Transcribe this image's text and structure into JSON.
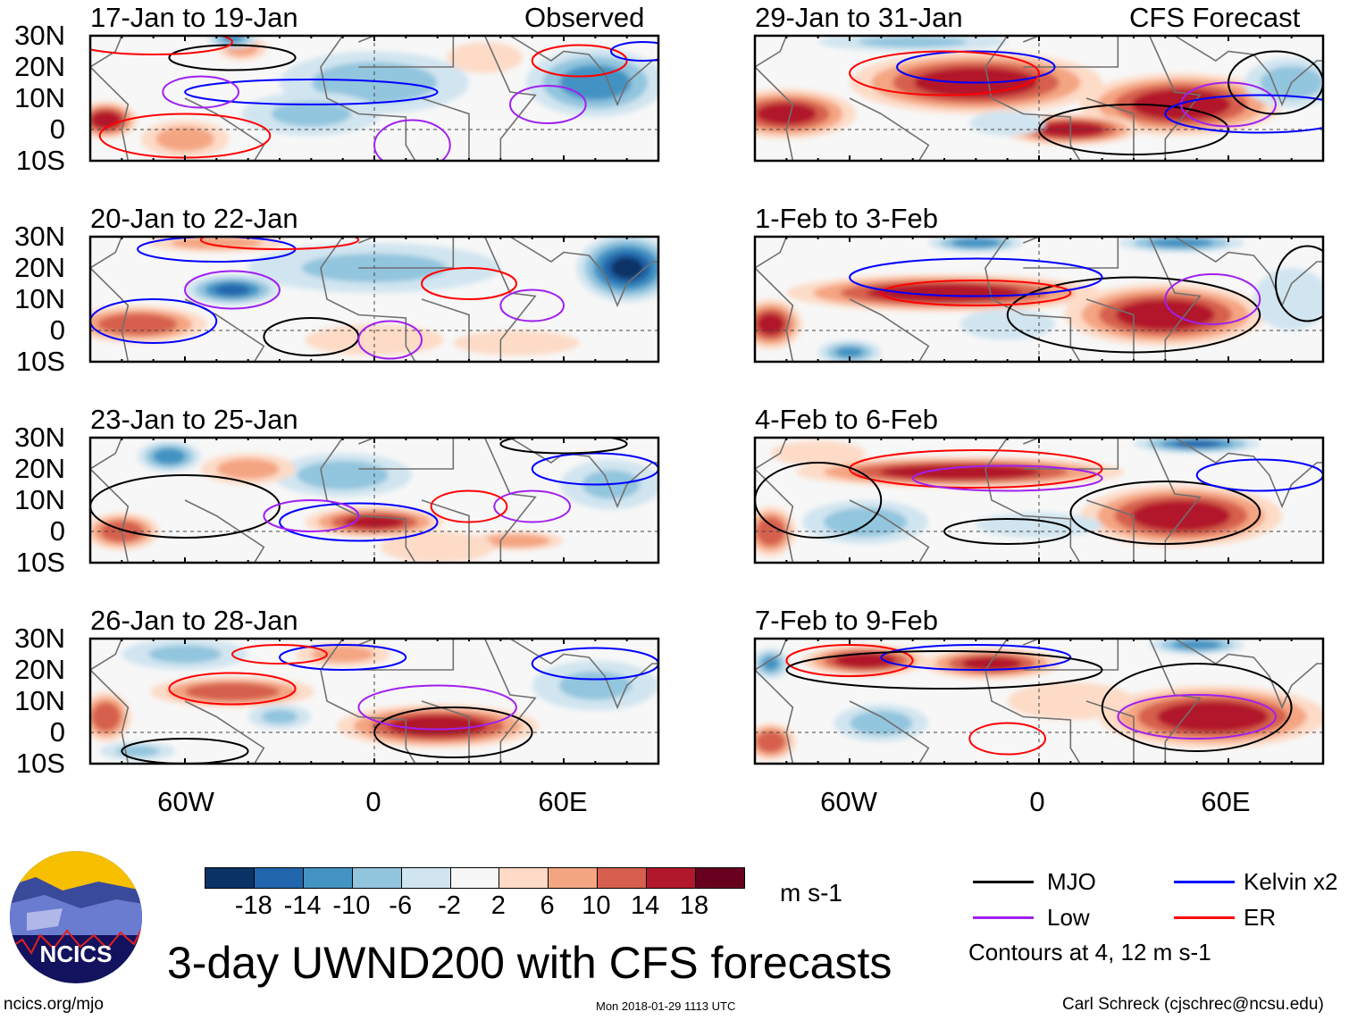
{
  "title": "3-day UWND200 with CFS forecasts",
  "footer": {
    "left": "ncics.org/mjo",
    "center": "Mon 2018-01-29 1113 UTC",
    "right": "Carl Schreck (cjschrec@ncsu.edu)"
  },
  "logo_text": "NCICS",
  "column_labels": {
    "observed": "Observed",
    "forecast": "CFS Forecast"
  },
  "lat_labels": [
    "30N",
    "20N",
    "10N",
    "0",
    "10S"
  ],
  "lon_labels": [
    "60W",
    "0",
    "60E"
  ],
  "colorbar": {
    "unit": "m s-1",
    "labels": [
      "-18",
      "-14",
      "-10",
      "-6",
      "-2",
      "2",
      "6",
      "10",
      "14",
      "18"
    ],
    "colors": [
      "#0b3265",
      "#2166ac",
      "#4393c3",
      "#92c5de",
      "#d1e5f0",
      "#f7f7f7",
      "#fddbc7",
      "#f4a582",
      "#d6604d",
      "#b2182b",
      "#67001f"
    ]
  },
  "legend": {
    "items": [
      {
        "label": "MJO",
        "color": "#000000"
      },
      {
        "label": "Kelvin x2",
        "color": "#0000ff"
      },
      {
        "label": "Low",
        "color": "#a020f0"
      },
      {
        "label": "ER",
        "color": "#ff0000"
      }
    ],
    "note": "Contours at 4, 12 m s-1"
  },
  "chart_data": {
    "type": "heatmap",
    "variable": "200-hPa zonal wind anomaly",
    "units": "m s-1",
    "lon_range": [
      -90,
      90
    ],
    "lat_range": [
      -10,
      30
    ],
    "contour_levels": [
      4,
      12
    ],
    "panels": [
      {
        "title": "17-Jan to 19-Jan",
        "anomalies": [
          [
            -85,
            3,
            10,
            6,
            18
          ],
          [
            -60,
            -3,
            14,
            6,
            8
          ],
          [
            -42,
            26,
            8,
            4,
            8
          ],
          [
            0,
            15,
            30,
            10,
            -8
          ],
          [
            70,
            15,
            22,
            11,
            -12
          ],
          [
            -20,
            5,
            22,
            7,
            -6
          ],
          [
            -45,
            29,
            8,
            3,
            -10
          ],
          [
            35,
            23,
            12,
            5,
            4
          ]
        ],
        "contours": [
          [
            "Kelvin",
            -20,
            12,
            40,
            4
          ],
          [
            "ER",
            -60,
            -2,
            27,
            7
          ],
          [
            "Low",
            -55,
            12,
            12,
            5
          ],
          [
            "Low",
            12,
            -5,
            12,
            8
          ],
          [
            "Low",
            55,
            8,
            12,
            6
          ],
          [
            "MJO",
            -45,
            23,
            20,
            4
          ],
          [
            "ER",
            65,
            22,
            15,
            5
          ],
          [
            "Kelvin",
            85,
            25,
            10,
            3
          ],
          [
            "ER",
            -70,
            28,
            25,
            4
          ]
        ]
      },
      {
        "title": "20-Jan to 22-Jan",
        "anomalies": [
          [
            -75,
            2,
            22,
            6,
            14
          ],
          [
            -45,
            13,
            15,
            5,
            -14
          ],
          [
            80,
            20,
            16,
            11,
            -18
          ],
          [
            0,
            20,
            40,
            8,
            -6
          ],
          [
            -50,
            28,
            22,
            3,
            8
          ],
          [
            0,
            -3,
            22,
            5,
            4
          ],
          [
            45,
            -4,
            20,
            4,
            4
          ]
        ],
        "contours": [
          [
            "Low",
            -45,
            13,
            15,
            6
          ],
          [
            "Low",
            50,
            8,
            10,
            5
          ],
          [
            "MJO",
            -20,
            -2,
            15,
            6
          ],
          [
            "Low",
            5,
            -3,
            10,
            6
          ],
          [
            "Kelvin",
            -50,
            26,
            25,
            4
          ],
          [
            "ER",
            30,
            15,
            15,
            5
          ],
          [
            "Kelvin",
            -70,
            3,
            20,
            7
          ],
          [
            "ER",
            -30,
            29,
            25,
            3
          ]
        ]
      },
      {
        "title": "23-Jan to 25-Jan",
        "anomalies": [
          [
            -80,
            0,
            12,
            6,
            14
          ],
          [
            0,
            3,
            22,
            5,
            16
          ],
          [
            45,
            -3,
            15,
            3,
            10
          ],
          [
            -65,
            24,
            10,
            5,
            -12
          ],
          [
            -10,
            18,
            22,
            7,
            -8
          ],
          [
            75,
            15,
            16,
            8,
            -6
          ],
          [
            -40,
            20,
            15,
            5,
            8
          ],
          [
            20,
            -5,
            18,
            5,
            6
          ]
        ],
        "contours": [
          [
            "MJO",
            -60,
            8,
            30,
            10
          ],
          [
            "Kelvin",
            -5,
            3,
            25,
            6
          ],
          [
            "Low",
            50,
            8,
            12,
            5
          ],
          [
            "ER",
            30,
            8,
            12,
            5
          ],
          [
            "Kelvin",
            70,
            20,
            20,
            5
          ],
          [
            "Low",
            -20,
            5,
            15,
            5
          ],
          [
            "MJO",
            60,
            28,
            20,
            3
          ]
        ]
      },
      {
        "title": "26-Jan to 28-Jan",
        "anomalies": [
          [
            -85,
            5,
            8,
            8,
            14
          ],
          [
            -45,
            13,
            26,
            5,
            14
          ],
          [
            20,
            2,
            32,
            7,
            18
          ],
          [
            -10,
            25,
            15,
            4,
            8
          ],
          [
            -60,
            25,
            20,
            5,
            -6
          ],
          [
            -30,
            5,
            10,
            4,
            -6
          ],
          [
            70,
            15,
            20,
            8,
            -6
          ],
          [
            -75,
            -6,
            12,
            3,
            -6
          ]
        ],
        "contours": [
          [
            "MJO",
            25,
            0,
            25,
            8
          ],
          [
            "ER",
            -45,
            14,
            20,
            5
          ],
          [
            "Low",
            20,
            8,
            25,
            7
          ],
          [
            "Kelvin",
            -10,
            24,
            20,
            4
          ],
          [
            "MJO",
            -60,
            -6,
            20,
            4
          ],
          [
            "ER",
            -30,
            25,
            15,
            3
          ],
          [
            "Kelvin",
            70,
            22,
            20,
            5
          ]
        ]
      },
      {
        "title": "29-Jan to 31-Jan",
        "anomalies": [
          [
            -20,
            15,
            40,
            10,
            18
          ],
          [
            -80,
            5,
            22,
            8,
            16
          ],
          [
            45,
            8,
            32,
            10,
            18
          ],
          [
            10,
            0,
            22,
            5,
            18
          ],
          [
            80,
            15,
            15,
            8,
            -8
          ],
          [
            -40,
            28,
            30,
            3,
            -6
          ],
          [
            -10,
            2,
            12,
            4,
            -4
          ]
        ],
        "contours": [
          [
            "MJO",
            30,
            0,
            30,
            8
          ],
          [
            "Kelvin",
            -20,
            20,
            25,
            5
          ],
          [
            "Low",
            60,
            8,
            15,
            7
          ],
          [
            "ER",
            -30,
            18,
            30,
            7
          ],
          [
            "Kelvin",
            70,
            5,
            30,
            6
          ],
          [
            "MJO",
            75,
            15,
            15,
            10
          ]
        ]
      },
      {
        "title": "1-Feb to 3-Feb",
        "anomalies": [
          [
            -30,
            12,
            50,
            6,
            18
          ],
          [
            -85,
            2,
            10,
            8,
            16
          ],
          [
            40,
            5,
            32,
            10,
            18
          ],
          [
            -60,
            -7,
            10,
            4,
            -10
          ],
          [
            -20,
            28,
            15,
            3,
            -12
          ],
          [
            45,
            28,
            20,
            3,
            -12
          ],
          [
            -10,
            2,
            15,
            5,
            -4
          ],
          [
            80,
            10,
            12,
            10,
            -4
          ]
        ],
        "contours": [
          [
            "MJO",
            30,
            5,
            40,
            12
          ],
          [
            "ER",
            -20,
            12,
            30,
            4
          ],
          [
            "Kelvin",
            -20,
            17,
            40,
            6
          ],
          [
            "Low",
            55,
            10,
            15,
            8
          ],
          [
            "MJO",
            85,
            15,
            10,
            12
          ]
        ]
      },
      {
        "title": "4-Feb to 6-Feb",
        "anomalies": [
          [
            -25,
            19,
            52,
            5,
            18
          ],
          [
            45,
            5,
            32,
            10,
            18
          ],
          [
            -85,
            0,
            8,
            8,
            14
          ],
          [
            -55,
            3,
            20,
            7,
            -8
          ],
          [
            50,
            28,
            20,
            3,
            -14
          ],
          [
            0,
            2,
            20,
            4,
            -4
          ],
          [
            -70,
            25,
            15,
            4,
            4
          ]
        ],
        "contours": [
          [
            "MJO",
            40,
            6,
            30,
            10
          ],
          [
            "ER",
            -20,
            20,
            40,
            6
          ],
          [
            "Low",
            -10,
            17,
            30,
            4
          ],
          [
            "MJO",
            -10,
            0,
            20,
            4
          ],
          [
            "Kelvin",
            70,
            18,
            20,
            5
          ],
          [
            "MJO",
            -70,
            10,
            20,
            12
          ]
        ]
      },
      {
        "title": "7-Feb to 9-Feb",
        "anomalies": [
          [
            -55,
            23,
            20,
            5,
            18
          ],
          [
            -15,
            22,
            22,
            5,
            16
          ],
          [
            55,
            5,
            36,
            10,
            18
          ],
          [
            -85,
            -3,
            8,
            6,
            14
          ],
          [
            -50,
            3,
            15,
            6,
            -8
          ],
          [
            50,
            28,
            15,
            3,
            -12
          ],
          [
            -85,
            22,
            6,
            5,
            -10
          ],
          [
            10,
            10,
            20,
            6,
            4
          ]
        ],
        "contours": [
          [
            "MJO",
            50,
            8,
            30,
            14
          ],
          [
            "ER",
            -60,
            23,
            20,
            5
          ],
          [
            "ER",
            -10,
            -2,
            12,
            5
          ],
          [
            "Kelvin",
            -20,
            24,
            30,
            4
          ],
          [
            "Low",
            50,
            5,
            25,
            7
          ],
          [
            "MJO",
            -30,
            20,
            50,
            6
          ]
        ]
      }
    ]
  }
}
